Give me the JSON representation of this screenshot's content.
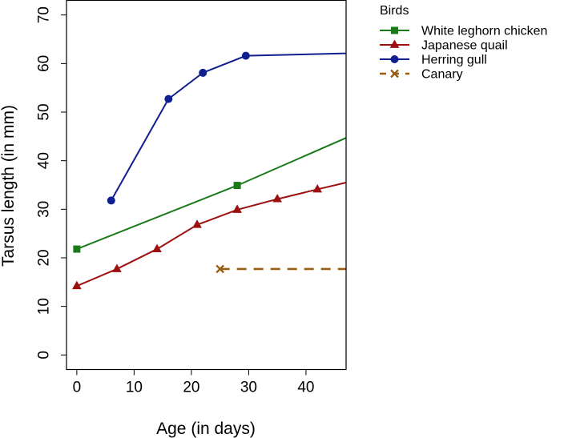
{
  "chart_data": {
    "type": "line",
    "title": "",
    "xlabel": "Age (in days)",
    "ylabel": "Tarsus length (in mm)",
    "xlim": [
      -1.8,
      47
    ],
    "ylim": [
      -3,
      73
    ],
    "xticks": [
      0,
      10,
      20,
      30,
      40
    ],
    "yticks": [
      0,
      10,
      20,
      30,
      40,
      50,
      60,
      70
    ],
    "legend_title": "Birds",
    "legend_position": "top-right outside plot",
    "series": [
      {
        "name": "White leghorn chicken",
        "color": "#1a7a1a",
        "marker": "square",
        "linestyle": "solid",
        "x": [
          0,
          28,
          47
        ],
        "y": [
          21.8,
          34.9,
          44.7
        ],
        "markers_at": [
          0,
          1
        ]
      },
      {
        "name": "Japanese quail",
        "color": "#9c1010",
        "marker": "triangle",
        "linestyle": "solid",
        "x": [
          0,
          7,
          14,
          21,
          28,
          35,
          42,
          47
        ],
        "y": [
          14.2,
          17.7,
          21.8,
          26.8,
          29.9,
          32.1,
          34.1,
          35.5
        ],
        "markers_at": [
          0,
          1,
          2,
          3,
          4,
          5,
          6
        ]
      },
      {
        "name": "Herring gull",
        "color": "#0f1f8f",
        "marker": "circle",
        "linestyle": "solid",
        "x": [
          6,
          16,
          22,
          29.5,
          47
        ],
        "y": [
          31.8,
          52.7,
          58.1,
          61.6,
          62.1
        ],
        "markers_at": [
          0,
          1,
          2,
          3
        ]
      },
      {
        "name": "Canary",
        "color": "#9a5e10",
        "marker": "x",
        "linestyle": "dashed",
        "x": [
          25,
          47
        ],
        "y": [
          17.7,
          17.7
        ],
        "markers_at": [
          0
        ]
      }
    ]
  }
}
